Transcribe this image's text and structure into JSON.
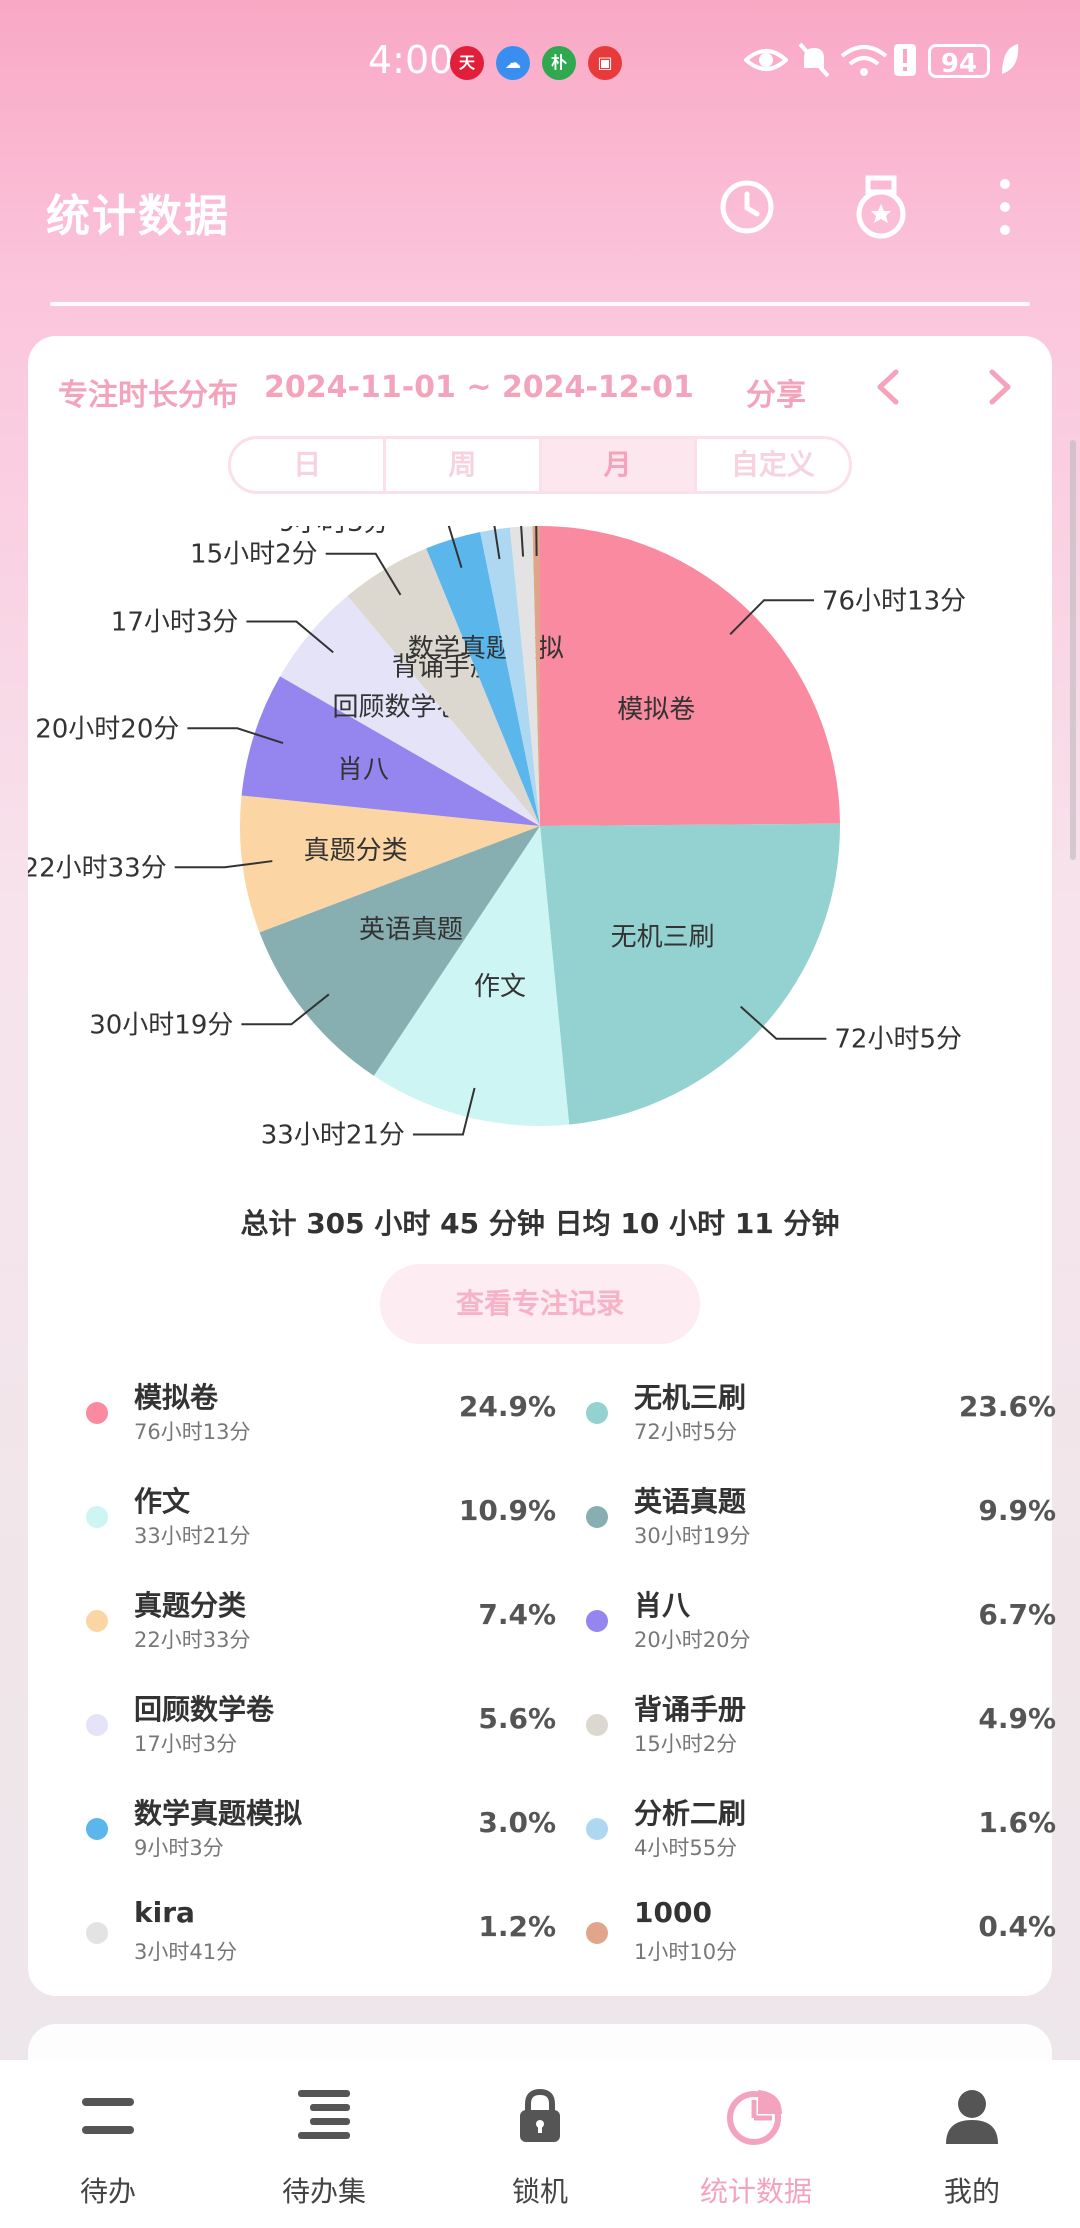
{
  "status_bar": {
    "time": "4:00",
    "apps": [
      {
        "label": "天",
        "color": "#e21f3a"
      },
      {
        "label": "☁",
        "color": "#3a8ef0"
      },
      {
        "label": "朴",
        "color": "#2fa84f"
      },
      {
        "label": "▣",
        "color": "#e83a3a"
      }
    ],
    "battery": "94"
  },
  "header": {
    "title": "统计数据"
  },
  "card": {
    "title": "专注时长分布",
    "date_range": "2024-11-01 ~ 2024-12-01",
    "share_label": "分享",
    "segments": [
      {
        "label": "日",
        "active": false
      },
      {
        "label": "周",
        "active": false
      },
      {
        "label": "月",
        "active": true
      },
      {
        "label": "自定义",
        "active": false
      }
    ],
    "total_text": "总计 305 小时 45 分钟 日均 10 小时 11 分钟",
    "view_records_label": "查看专注记录"
  },
  "chart_data": {
    "type": "pie",
    "slices": [
      {
        "name": "模拟卷",
        "value": 24.9,
        "duration": "76小时13分",
        "color": "#f98aa0",
        "show_name": true
      },
      {
        "name": "无机三刷",
        "value": 23.6,
        "duration": "72小时5分",
        "color": "#93d2d0",
        "show_name": true
      },
      {
        "name": "作文",
        "value": 10.9,
        "duration": "33小时21分",
        "color": "#ccf5f3",
        "show_name": true
      },
      {
        "name": "英语真题",
        "value": 9.9,
        "duration": "30小时19分",
        "color": "#87afb2",
        "show_name": true
      },
      {
        "name": "真题分类",
        "value": 7.4,
        "duration": "22小时33分",
        "color": "#fbd6a4",
        "show_name": true
      },
      {
        "name": "肖八",
        "value": 6.7,
        "duration": "20小时20分",
        "color": "#9585ef",
        "show_name": true
      },
      {
        "name": "回顾数学卷",
        "value": 5.6,
        "duration": "17小时3分",
        "color": "#e5e3f8",
        "show_name": true
      },
      {
        "name": "背诵手册",
        "value": 4.9,
        "duration": "15小时2分",
        "color": "#dcd8cf",
        "show_name": true
      },
      {
        "name": "数学真题模拟",
        "value": 3.0,
        "duration": "9小时3分",
        "color": "#5bb6ec",
        "show_name": true
      },
      {
        "name": "分析二刷",
        "value": 1.6,
        "duration": "4小时55分",
        "color": "#aed8f2",
        "show_name": false
      },
      {
        "name": "kira",
        "value": 1.2,
        "duration": "3小时41分",
        "color": "#e3e3e3",
        "show_name": false
      },
      {
        "name": "1000",
        "value": 0.4,
        "duration": "1小时10分",
        "color": "#e0a58a",
        "show_name": false
      }
    ]
  },
  "legend": [
    {
      "name": "模拟卷",
      "sub": "76小时13分",
      "pct": "24.9%",
      "color": "#f98aa0"
    },
    {
      "name": "无机三刷",
      "sub": "72小时5分",
      "pct": "23.6%",
      "color": "#93d2d0"
    },
    {
      "name": "作文",
      "sub": "33小时21分",
      "pct": "10.9%",
      "color": "#ccf5f3"
    },
    {
      "name": "英语真题",
      "sub": "30小时19分",
      "pct": "9.9%",
      "color": "#87afb2"
    },
    {
      "name": "真题分类",
      "sub": "22小时33分",
      "pct": "7.4%",
      "color": "#fbd6a4"
    },
    {
      "name": "肖八",
      "sub": "20小时20分",
      "pct": "6.7%",
      "color": "#9585ef"
    },
    {
      "name": "回顾数学卷",
      "sub": "17小时3分",
      "pct": "5.6%",
      "color": "#e5e3f8"
    },
    {
      "name": "背诵手册",
      "sub": "15小时2分",
      "pct": "4.9%",
      "color": "#dcd8cf"
    },
    {
      "name": "数学真题模拟",
      "sub": "9小时3分",
      "pct": "3.0%",
      "color": "#5bb6ec"
    },
    {
      "name": "分析二刷",
      "sub": "4小时55分",
      "pct": "1.6%",
      "color": "#aed8f2"
    },
    {
      "name": "kira",
      "sub": "3小时41分",
      "pct": "1.2%",
      "color": "#e3e3e3"
    },
    {
      "name": "1000",
      "sub": "1小时10分",
      "pct": "0.4%",
      "color": "#e0a58a"
    }
  ],
  "bottom_nav": [
    {
      "label": "待办",
      "icon": "menu-icon",
      "active": false
    },
    {
      "label": "待办集",
      "icon": "list-icon",
      "active": false
    },
    {
      "label": "锁机",
      "icon": "lock-icon",
      "active": false
    },
    {
      "label": "统计数据",
      "icon": "pie-chart-icon",
      "active": true
    },
    {
      "label": "我的",
      "icon": "person-icon",
      "active": false
    }
  ],
  "colors": {
    "accent": "#f3a3bb",
    "active_tab": "#f4a3be"
  }
}
